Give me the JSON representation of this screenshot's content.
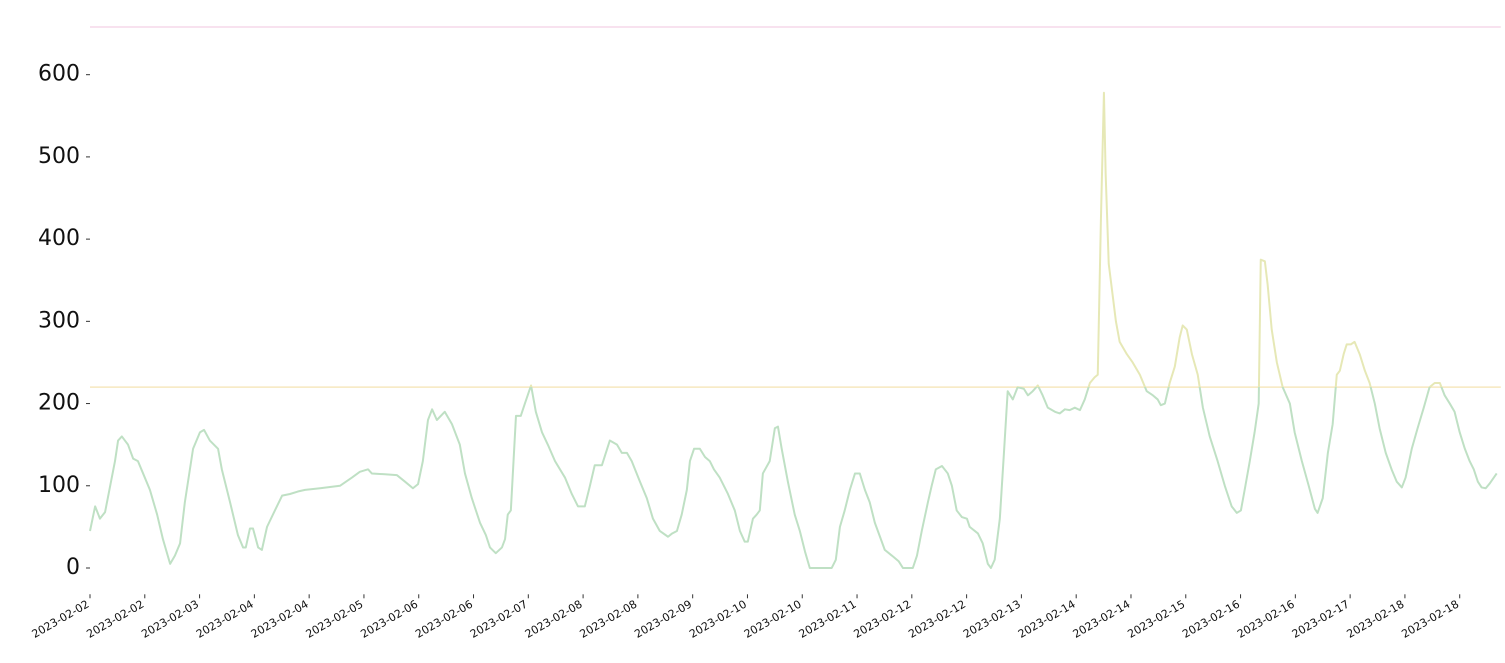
{
  "chart_data": {
    "type": "line",
    "color": "#bfe0c4",
    "color_above": "#e6e8b6",
    "hlines": [
      {
        "value": 220,
        "color": "#f6e8bf"
      },
      {
        "value": 658,
        "color": "#f6d9ea"
      }
    ],
    "xlim": [
      0,
      412
    ],
    "ylim": [
      -32,
      658
    ],
    "yticks": [
      0,
      100,
      200,
      300,
      400,
      500,
      600
    ],
    "xticks": [
      {
        "value": 0,
        "label": "2023-02-02"
      },
      {
        "value": 16,
        "label": "2023-02-02"
      },
      {
        "value": 32,
        "label": "2023-02-03"
      },
      {
        "value": 48,
        "label": "2023-02-04"
      },
      {
        "value": 64,
        "label": "2023-02-04"
      },
      {
        "value": 80,
        "label": "2023-02-05"
      },
      {
        "value": 96,
        "label": "2023-02-06"
      },
      {
        "value": 112,
        "label": "2023-02-06"
      },
      {
        "value": 128,
        "label": "2023-02-07"
      },
      {
        "value": 144,
        "label": "2023-02-08"
      },
      {
        "value": 160,
        "label": "2023-02-08"
      },
      {
        "value": 176,
        "label": "2023-02-09"
      },
      {
        "value": 192,
        "label": "2023-02-10"
      },
      {
        "value": 208,
        "label": "2023-02-10"
      },
      {
        "value": 224,
        "label": "2023-02-11"
      },
      {
        "value": 240,
        "label": "2023-02-12"
      },
      {
        "value": 256,
        "label": "2023-02-12"
      },
      {
        "value": 272,
        "label": "2023-02-13"
      },
      {
        "value": 288,
        "label": "2023-02-14"
      },
      {
        "value": 304,
        "label": "2023-02-14"
      },
      {
        "value": 320,
        "label": "2023-02-15"
      },
      {
        "value": 336,
        "label": "2023-02-16"
      },
      {
        "value": 352,
        "label": "2023-02-16"
      },
      {
        "value": 368,
        "label": "2023-02-17"
      },
      {
        "value": 384,
        "label": "2023-02-18"
      },
      {
        "value": 400,
        "label": "2023-02-18"
      }
    ],
    "x": [
      0,
      1.5,
      2.9,
      4.4,
      7.3,
      8.2,
      9.3,
      11.1,
      12.6,
      14.0,
      15.5,
      17.5,
      19.6,
      21.3,
      23.4,
      24.8,
      26.3,
      27.7,
      30.1,
      32.1,
      33.3,
      35.0,
      37.4,
      38.5,
      40.9,
      43.2,
      44.7,
      45.5,
      46.7,
      47.6,
      49.1,
      50.2,
      51.7,
      54.0,
      56.1,
      58.4,
      60.7,
      62.8,
      67.2,
      73.0,
      76.5,
      78.8,
      81.2,
      82.3,
      86.1,
      89.6,
      92.0,
      94.3,
      95.8,
      97.2,
      98.7,
      99.9,
      101.3,
      103.6,
      105.7,
      108.0,
      109.5,
      111.5,
      113.9,
      115.6,
      116.8,
      118.5,
      120.3,
      121.2,
      122.0,
      122.9,
      124.4,
      125.8,
      127.0,
      128.8,
      130.2,
      132.0,
      133.7,
      135.8,
      138.7,
      140.7,
      142.5,
      144.5,
      146.0,
      147.4,
      149.5,
      151.8,
      153.9,
      155.3,
      156.8,
      158.2,
      160.6,
      162.6,
      164.4,
      166.4,
      168.8,
      170.0,
      171.4,
      172.8,
      174.3,
      175.2,
      176.4,
      178.1,
      179.6,
      181.0,
      182.2,
      183.9,
      186.3,
      188.3,
      189.8,
      191.2,
      192.1,
      193.6,
      194.7,
      195.6,
      196.5,
      198.5,
      200.0,
      200.9,
      202.0,
      203.8,
      205.8,
      207.3,
      208.8,
      210.2,
      213.1,
      216.6,
      217.8,
      219.0,
      220.4,
      221.9,
      223.4,
      224.8,
      226.3,
      227.7,
      229.2,
      230.7,
      232.1,
      234.2,
      236.2,
      237.4,
      240.3,
      241.5,
      242.9,
      244.7,
      245.8,
      247.0,
      248.8,
      250.5,
      251.7,
      253.1,
      254.6,
      256.1,
      256.9,
      259.3,
      260.7,
      262.2,
      263.1,
      264.2,
      265.7,
      266.9,
      268.0,
      269.5,
      270.9,
      272.7,
      273.9,
      275.3,
      276.8,
      278.2,
      279.7,
      281.8,
      283.2,
      284.7,
      286.1,
      287.6,
      289.1,
      290.5,
      292.0,
      293.4,
      294.3,
      295.2,
      296.1,
      296.6,
      297.5,
      298.7,
      299.6,
      300.7,
      302.8,
      304.5,
      306.6,
      308.6,
      310.4,
      311.8,
      312.7,
      313.9,
      315.3,
      316.8,
      318.2,
      319.1,
      320.3,
      321.8,
      323.5,
      325.0,
      327.0,
      329.3,
      331.4,
      333.4,
      334.9,
      336.1,
      337.2,
      338.7,
      340.1,
      341.3,
      341.9,
      343.1,
      343.9,
      345.1,
      346.6,
      348.3,
      350.4,
      351.8,
      353.9,
      355.9,
      357.7,
      358.5,
      360.0,
      361.5,
      362.9,
      364.1,
      365.0,
      366.1,
      367.0,
      368.2,
      369.3,
      370.8,
      372.3,
      373.7,
      375.2,
      376.6,
      378.4,
      380.1,
      381.6,
      383.1,
      384.2,
      386.0,
      387.7,
      389.5,
      391.2,
      392.7,
      394.2,
      395.6,
      397.1,
      398.5,
      400.0,
      401.5,
      402.9,
      404.1,
      405.3,
      406.4,
      407.6,
      408.8,
      410.8
    ],
    "values": [
      45,
      75,
      60,
      68,
      130,
      155,
      160,
      150,
      133,
      130,
      115,
      95,
      65,
      35,
      5,
      15,
      30,
      80,
      145,
      165,
      168,
      155,
      145,
      120,
      80,
      40,
      25,
      25,
      48,
      48,
      25,
      22,
      50,
      70,
      88,
      90,
      93,
      95,
      97,
      100,
      110,
      117,
      120,
      115,
      114,
      113,
      105,
      97,
      102,
      130,
      180,
      193,
      180,
      190,
      175,
      150,
      115,
      85,
      55,
      40,
      25,
      18,
      25,
      35,
      65,
      70,
      185,
      185,
      200,
      222,
      190,
      165,
      150,
      130,
      110,
      90,
      75,
      75,
      100,
      125,
      125,
      155,
      150,
      140,
      140,
      130,
      105,
      85,
      60,
      45,
      38,
      42,
      45,
      65,
      95,
      130,
      145,
      145,
      135,
      130,
      120,
      110,
      90,
      70,
      45,
      32,
      32,
      60,
      65,
      70,
      115,
      130,
      170,
      172,
      145,
      105,
      65,
      45,
      20,
      0,
      0,
      0,
      10,
      50,
      70,
      95,
      115,
      115,
      95,
      80,
      55,
      38,
      22,
      15,
      8,
      0,
      0,
      15,
      45,
      80,
      100,
      120,
      124,
      115,
      100,
      70,
      62,
      60,
      50,
      42,
      30,
      5,
      0,
      10,
      60,
      140,
      215,
      205,
      220,
      218,
      210,
      215,
      222,
      210,
      195,
      190,
      188,
      193,
      192,
      195,
      192,
      205,
      225,
      232,
      235,
      420,
      578,
      480,
      370,
      330,
      300,
      275,
      260,
      250,
      235,
      215,
      210,
      205,
      198,
      200,
      225,
      245,
      280,
      295,
      290,
      260,
      235,
      195,
      160,
      130,
      100,
      75,
      67,
      70,
      95,
      130,
      165,
      200,
      375,
      373,
      345,
      290,
      250,
      220,
      200,
      165,
      130,
      100,
      72,
      67,
      85,
      140,
      175,
      235,
      240,
      260,
      272,
      272,
      275,
      260,
      240,
      225,
      200,
      170,
      140,
      120,
      105,
      98,
      110,
      145,
      170,
      195,
      220,
      225,
      225,
      210,
      200,
      190,
      165,
      145,
      130,
      120,
      105,
      98,
      97,
      103,
      115
    ]
  }
}
